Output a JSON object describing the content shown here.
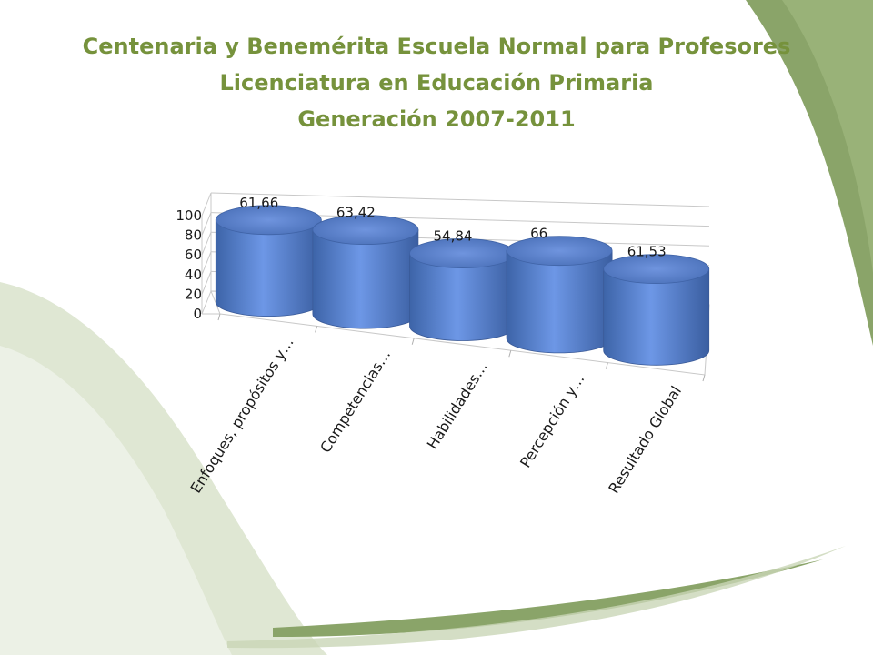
{
  "slide": {
    "title_lines": [
      "Centenaria y Benemérita Escuela Normal para Profesores",
      "Licenciatura en Educación Primaria",
      "Generación 2007-2011"
    ],
    "colors": {
      "title": "#76923c",
      "swoosh_dark": "#8aa469",
      "swoosh_light": "#dfe7d3"
    }
  },
  "chart_data": {
    "type": "bar",
    "shape": "cylinder-3d",
    "categories": [
      "Enfoques, propósitos y…",
      "Competencias…",
      "Habilidades…",
      "Percepción y…",
      "Resultado Global"
    ],
    "values": [
      61.66,
      63.42,
      54.84,
      66,
      61.53
    ],
    "value_labels": [
      "61,66",
      "63,42",
      "54,84",
      "66",
      "61,53"
    ],
    "ylim": [
      0,
      100
    ],
    "yticks": [
      "0",
      "20",
      "40",
      "60",
      "80",
      "100"
    ],
    "grid": true,
    "bar_color": "#4f81bd"
  }
}
